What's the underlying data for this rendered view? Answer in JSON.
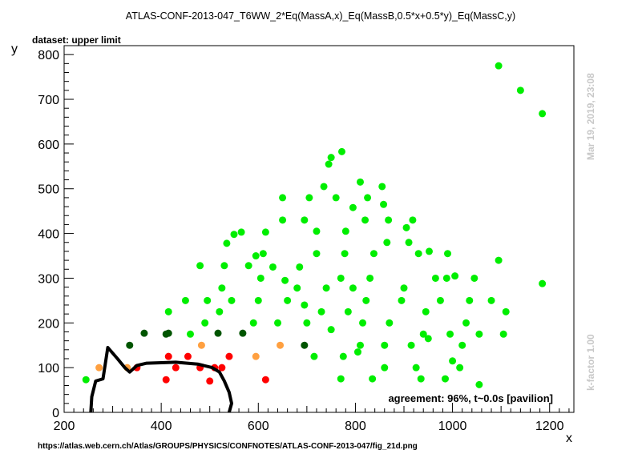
{
  "chart_data": {
    "type": "scatter",
    "title": "ATLAS-CONF-2013-047_T6WW_2*Eq(MassA,x)_Eq(MassB,0.5*x+0.5*y)_Eq(MassC,y)",
    "subtitle": "dataset: upper limit",
    "xlabel": "x",
    "ylabel": "y",
    "xlim": [
      200,
      1250
    ],
    "ylim": [
      0,
      820
    ],
    "xticks": [
      200,
      400,
      600,
      800,
      1000,
      1200
    ],
    "yticks": [
      0,
      100,
      200,
      300,
      400,
      500,
      600,
      700,
      800
    ],
    "agreement_text": "agreement: 96%, t~0.0s [pavilion]",
    "source_url": "https://atlas.web.cern.ch/Atlas/GROUPS/PHYSICS/CONFNOTES/ATLAS-CONF-2013-047/fig_21d.png",
    "timestamp": "Mar 19, 2019, 23:08",
    "kfactor_text": "k-factor 1.00",
    "colors": {
      "bright_green": "#00ee00",
      "dark_green": "#005500",
      "orange": "#ffa040",
      "red": "#ff0000",
      "contour": "#000000"
    },
    "series": [
      {
        "color": "bright_green",
        "points": [
          [
            245,
            73
          ],
          [
            415,
            225
          ],
          [
            450,
            250
          ],
          [
            460,
            175
          ],
          [
            480,
            328
          ],
          [
            490,
            200
          ],
          [
            495,
            250
          ],
          [
            520,
            225
          ],
          [
            525,
            278
          ],
          [
            530,
            328
          ],
          [
            535,
            378
          ],
          [
            545,
            250
          ],
          [
            550,
            398
          ],
          [
            565,
            403
          ],
          [
            580,
            328
          ],
          [
            590,
            200
          ],
          [
            595,
            350
          ],
          [
            600,
            250
          ],
          [
            605,
            300
          ],
          [
            610,
            355
          ],
          [
            615,
            403
          ],
          [
            630,
            325
          ],
          [
            640,
            200
          ],
          [
            650,
            430
          ],
          [
            650,
            480
          ],
          [
            655,
            295
          ],
          [
            660,
            250
          ],
          [
            680,
            278
          ],
          [
            685,
            325
          ],
          [
            695,
            240
          ],
          [
            695,
            430
          ],
          [
            700,
            200
          ],
          [
            705,
            480
          ],
          [
            715,
            125
          ],
          [
            720,
            355
          ],
          [
            720,
            405
          ],
          [
            730,
            225
          ],
          [
            735,
            505
          ],
          [
            740,
            278
          ],
          [
            745,
            555
          ],
          [
            750,
            185
          ],
          [
            750,
            570
          ],
          [
            760,
            480
          ],
          [
            770,
            75
          ],
          [
            770,
            300
          ],
          [
            772,
            583
          ],
          [
            775,
            125
          ],
          [
            778,
            355
          ],
          [
            780,
            405
          ],
          [
            785,
            225
          ],
          [
            795,
            278
          ],
          [
            795,
            458
          ],
          [
            805,
            135
          ],
          [
            810,
            150
          ],
          [
            810,
            515
          ],
          [
            815,
            200
          ],
          [
            820,
            430
          ],
          [
            822,
            250
          ],
          [
            825,
            480
          ],
          [
            830,
            300
          ],
          [
            835,
            75
          ],
          [
            838,
            355
          ],
          [
            855,
            505
          ],
          [
            858,
            465
          ],
          [
            860,
            100
          ],
          [
            860,
            150
          ],
          [
            865,
            380
          ],
          [
            868,
            430
          ],
          [
            870,
            200
          ],
          [
            895,
            250
          ],
          [
            900,
            278
          ],
          [
            905,
            413
          ],
          [
            910,
            380
          ],
          [
            915,
            150
          ],
          [
            918,
            430
          ],
          [
            925,
            100
          ],
          [
            930,
            355
          ],
          [
            935,
            75
          ],
          [
            940,
            175
          ],
          [
            945,
            225
          ],
          [
            950,
            165
          ],
          [
            952,
            360
          ],
          [
            965,
            300
          ],
          [
            975,
            250
          ],
          [
            985,
            75
          ],
          [
            988,
            300
          ],
          [
            990,
            355
          ],
          [
            995,
            175
          ],
          [
            1000,
            115
          ],
          [
            1005,
            305
          ],
          [
            1015,
            100
          ],
          [
            1020,
            150
          ],
          [
            1028,
            200
          ],
          [
            1035,
            250
          ],
          [
            1045,
            300
          ],
          [
            1055,
            175
          ],
          [
            1055,
            62
          ],
          [
            1080,
            250
          ],
          [
            1095,
            775
          ],
          [
            1095,
            340
          ],
          [
            1105,
            175
          ],
          [
            1110,
            225
          ],
          [
            1140,
            720
          ],
          [
            1185,
            668
          ],
          [
            1185,
            288
          ]
        ]
      },
      {
        "color": "dark_green",
        "points": [
          [
            335,
            150
          ],
          [
            365,
            177
          ],
          [
            410,
            175
          ],
          [
            415,
            177
          ],
          [
            517,
            177
          ],
          [
            568,
            177
          ],
          [
            695,
            150
          ]
        ]
      },
      {
        "color": "orange",
        "points": [
          [
            272,
            100
          ],
          [
            330,
            100
          ],
          [
            483,
            150
          ],
          [
            595,
            125
          ],
          [
            645,
            150
          ]
        ]
      },
      {
        "color": "red",
        "points": [
          [
            350,
            100
          ],
          [
            410,
            73
          ],
          [
            415,
            125
          ],
          [
            430,
            100
          ],
          [
            455,
            125
          ],
          [
            480,
            100
          ],
          [
            500,
            70
          ],
          [
            510,
            100
          ],
          [
            525,
            100
          ],
          [
            540,
            125
          ],
          [
            615,
            73
          ]
        ]
      }
    ],
    "contour": [
      [
        255,
        0
      ],
      [
        257,
        35
      ],
      [
        265,
        70
      ],
      [
        280,
        75
      ],
      [
        290,
        145
      ],
      [
        310,
        120
      ],
      [
        325,
        100
      ],
      [
        335,
        90
      ],
      [
        350,
        105
      ],
      [
        370,
        110
      ],
      [
        430,
        112
      ],
      [
        475,
        108
      ],
      [
        505,
        100
      ],
      [
        520,
        90
      ],
      [
        530,
        70
      ],
      [
        540,
        45
      ],
      [
        545,
        20
      ],
      [
        540,
        0
      ]
    ]
  }
}
